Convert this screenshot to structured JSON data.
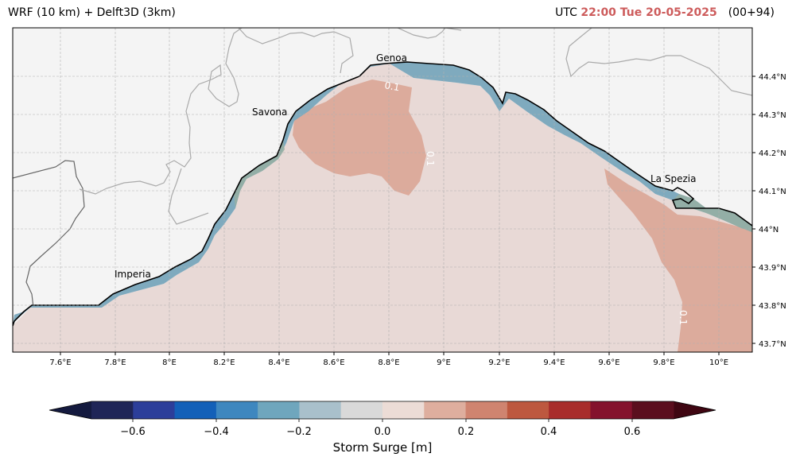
{
  "header": {
    "title_left": "WRF (10 km) + Delft3D (3km)",
    "utc_label": "UTC",
    "time": "22:00 Tue 20-05-2025",
    "forecast_step": "(00+94)"
  },
  "map": {
    "lon_ticks": [
      "7.6°E",
      "7.8°E",
      "8°E",
      "8.2°E",
      "8.4°E",
      "8.6°E",
      "8.8°E",
      "9°E",
      "9.2°E",
      "9.4°E",
      "9.6°E",
      "9.8°E",
      "10°E"
    ],
    "lat_ticks": [
      "44.4°N",
      "44.3°N",
      "44.2°N",
      "44.1°N",
      "44°N",
      "43.9°N",
      "43.8°N",
      "43.7°N"
    ],
    "cities": [
      "Genoa",
      "Savona",
      "La Spezia",
      "Imperia"
    ],
    "contour_labels": [
      "0.1",
      "0.1",
      "0.1"
    ],
    "colors": {
      "land": "#f4f4f4",
      "coast": "#000000",
      "grid": "#b0b0b0"
    }
  },
  "colorbar": {
    "label": "Storm Surge [m]",
    "tick_labels": [
      "−0.6",
      "−0.4",
      "−0.2",
      "0.0",
      "0.2",
      "0.4",
      "0.6"
    ],
    "levels": [
      -0.7,
      -0.6,
      -0.5,
      -0.4,
      -0.3,
      -0.2,
      -0.1,
      0,
      0.1,
      0.2,
      0.3,
      0.4,
      0.5,
      0.6,
      0.7
    ],
    "colors": [
      "#1f2557",
      "#2c3e9a",
      "#1360b8",
      "#3e87bf",
      "#6fa6bd",
      "#a9c0cb",
      "#d9d9d9",
      "#ecdcd6",
      "#deae9e",
      "#cf8470",
      "#bd583f",
      "#a82d2b",
      "#84122d",
      "#5b0e1e"
    ],
    "extend_low_color": "#141a3f",
    "extend_high_color": "#3f0612"
  }
}
